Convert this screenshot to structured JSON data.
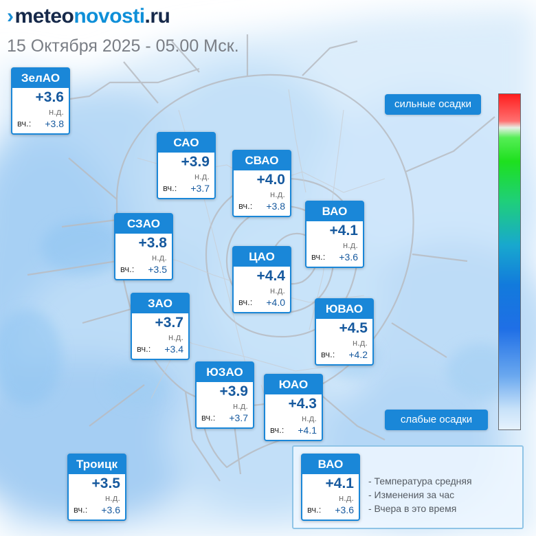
{
  "header": {
    "logo": {
      "mark": "›",
      "part1": "meteo",
      "part2": "novosti",
      "part3": ".ru"
    },
    "subtitle": "15 Октября 2025 - 05.00 Мск."
  },
  "districts": [
    {
      "name": "ЗелАО",
      "temp": "+3.6",
      "change": "н.д.",
      "yesterday_label": "вч.:",
      "yesterday": "+3.8"
    },
    {
      "name": "САО",
      "temp": "+3.9",
      "change": "н.д.",
      "yesterday_label": "вч.:",
      "yesterday": "+3.7"
    },
    {
      "name": "СВАО",
      "temp": "+4.0",
      "change": "н.д.",
      "yesterday_label": "вч.:",
      "yesterday": "+3.8"
    },
    {
      "name": "ВАО",
      "temp": "+4.1",
      "change": "н.д.",
      "yesterday_label": "вч.:",
      "yesterday": "+3.6"
    },
    {
      "name": "СЗАО",
      "temp": "+3.8",
      "change": "н.д.",
      "yesterday_label": "вч.:",
      "yesterday": "+3.5"
    },
    {
      "name": "ЦАО",
      "temp": "+4.4",
      "change": "н.д.",
      "yesterday_label": "вч.:",
      "yesterday": "+4.0"
    },
    {
      "name": "ЗАО",
      "temp": "+3.7",
      "change": "н.д.",
      "yesterday_label": "вч.:",
      "yesterday": "+3.4"
    },
    {
      "name": "ЮВАО",
      "temp": "+4.5",
      "change": "н.д.",
      "yesterday_label": "вч.:",
      "yesterday": "+4.2"
    },
    {
      "name": "ЮЗАО",
      "temp": "+3.9",
      "change": "н.д.",
      "yesterday_label": "вч.:",
      "yesterday": "+3.7"
    },
    {
      "name": "ЮАО",
      "temp": "+4.3",
      "change": "н.д.",
      "yesterday_label": "вч.:",
      "yesterday": "+4.1"
    },
    {
      "name": "Троицк",
      "temp": "+3.5",
      "change": "н.д.",
      "yesterday_label": "вч.:",
      "yesterday": "+3.6"
    }
  ],
  "scale": {
    "top_label": "сильные осадки",
    "bottom_label": "слабые осадки",
    "colors": [
      "#ff1e1e",
      "#1ee01e",
      "#127adc",
      "#e6f2fd"
    ]
  },
  "legend": {
    "sample": {
      "name": "ВАО",
      "temp": "+4.1",
      "change": "н.д.",
      "yesterday_label": "вч.:",
      "yesterday": "+3.6"
    },
    "lines": [
      "- Температура средняя",
      "- Изменения за час",
      "- Вчера в это время"
    ]
  },
  "colors": {
    "brand_blue": "#1a87d8",
    "value_blue": "#16599e",
    "precip_light": "#cfe6fb",
    "precip_mid": "#8fc5f2"
  }
}
